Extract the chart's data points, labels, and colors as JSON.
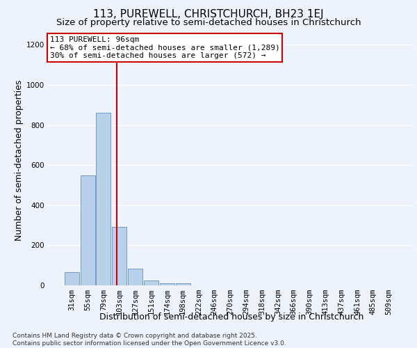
{
  "title1": "113, PUREWELL, CHRISTCHURCH, BH23 1EJ",
  "title2": "Size of property relative to semi-detached houses in Christchurch",
  "xlabel": "Distribution of semi-detached houses by size in Christchurch",
  "ylabel": "Number of semi-detached properties",
  "categories": [
    "31sqm",
    "55sqm",
    "79sqm",
    "103sqm",
    "127sqm",
    "151sqm",
    "174sqm",
    "198sqm",
    "222sqm",
    "246sqm",
    "270sqm",
    "294sqm",
    "318sqm",
    "342sqm",
    "366sqm",
    "390sqm",
    "413sqm",
    "437sqm",
    "461sqm",
    "485sqm",
    "509sqm"
  ],
  "values": [
    65,
    550,
    860,
    290,
    85,
    25,
    12,
    10,
    0,
    0,
    0,
    0,
    0,
    0,
    0,
    0,
    0,
    0,
    0,
    0,
    0
  ],
  "bar_color": "#b8d0ea",
  "bar_edge_color": "#6090c0",
  "vline_x": 2.83,
  "vline_color": "#cc0000",
  "annotation_title": "113 PUREWELL: 96sqm",
  "annotation_line1": "← 68% of semi-detached houses are smaller (1,289)",
  "annotation_line2": "30% of semi-detached houses are larger (572) →",
  "annotation_box_color": "#cc0000",
  "ylim": [
    0,
    1250
  ],
  "yticks": [
    0,
    200,
    400,
    600,
    800,
    1000,
    1200
  ],
  "footnote": "Contains HM Land Registry data © Crown copyright and database right 2025.\nContains public sector information licensed under the Open Government Licence v3.0.",
  "bg_color": "#eef2fb",
  "grid_color": "#ffffff",
  "title_fontsize": 11,
  "subtitle_fontsize": 9.5,
  "axis_label_fontsize": 9,
  "tick_fontsize": 7.5,
  "annotation_fontsize": 8,
  "footnote_fontsize": 6.5
}
